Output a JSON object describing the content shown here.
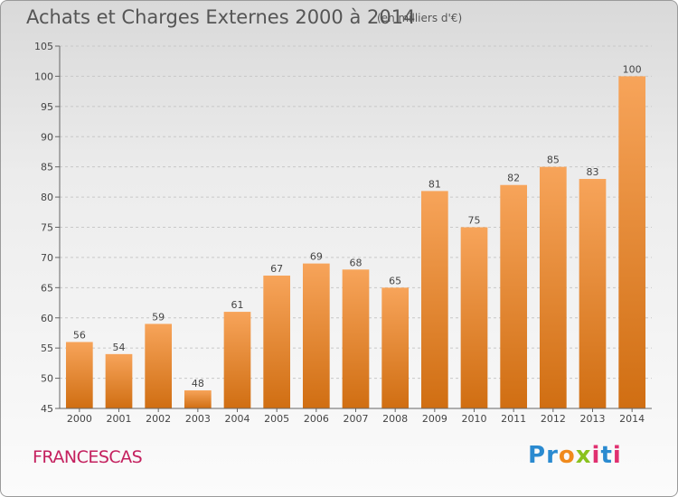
{
  "title": "Achats et Charges Externes 2000 à 2014",
  "unit": "(en milliers d'€)",
  "commune": "FRANCESCAS",
  "logo": {
    "letters": [
      "P",
      "r",
      "o",
      "x",
      "i",
      "t",
      "i"
    ],
    "colors": [
      "#2a8ad0",
      "#2a8ad0",
      "#f08a1c",
      "#8ac21e",
      "#e03070",
      "#2a8ad0",
      "#e03070"
    ]
  },
  "chart_data": {
    "type": "bar",
    "categories": [
      "2000",
      "2001",
      "2002",
      "2003",
      "2004",
      "2005",
      "2006",
      "2007",
      "2008",
      "2009",
      "2010",
      "2011",
      "2012",
      "2013",
      "2014"
    ],
    "values": [
      56,
      54,
      59,
      48,
      61,
      67,
      69,
      68,
      65,
      81,
      75,
      82,
      85,
      83,
      100
    ],
    "ylim": [
      45,
      105
    ],
    "yticks": [
      45,
      50,
      55,
      60,
      65,
      70,
      75,
      80,
      85,
      90,
      95,
      100,
      105
    ],
    "grid": true,
    "bar_color_top": "#f7a45a",
    "bar_color_bottom": "#d06e12"
  }
}
